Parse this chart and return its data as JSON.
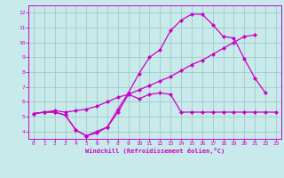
{
  "bg_color": "#c8eaea",
  "grid_color": "#a0cccc",
  "line_color": "#cc00cc",
  "marker": "D",
  "markersize": 2.0,
  "linewidth": 0.9,
  "xlabel": "Windchill (Refroidissement éolien,°C)",
  "xlim": [
    -0.5,
    23.5
  ],
  "ylim": [
    3.5,
    12.5
  ],
  "xticks": [
    0,
    1,
    2,
    3,
    4,
    5,
    6,
    7,
    8,
    9,
    10,
    11,
    12,
    13,
    14,
    15,
    16,
    17,
    18,
    19,
    20,
    21,
    22,
    23
  ],
  "yticks": [
    4,
    5,
    6,
    7,
    8,
    9,
    10,
    11,
    12
  ],
  "curve1_x": [
    0,
    1,
    2,
    3,
    4,
    5,
    6,
    7,
    8,
    9,
    10,
    11,
    12,
    13,
    14,
    15,
    16,
    17,
    18,
    19,
    20,
    21,
    22,
    23
  ],
  "curve1_y": [
    5.2,
    5.3,
    5.3,
    5.1,
    4.1,
    3.7,
    3.9,
    4.3,
    5.3,
    6.5,
    6.2,
    6.5,
    6.6,
    6.5,
    5.3,
    5.3,
    5.3,
    5.3,
    5.3,
    5.3,
    5.3,
    5.3,
    5.3,
    5.3
  ],
  "curve2_x": [
    0,
    1,
    2,
    3,
    4,
    5,
    6,
    7,
    8,
    9,
    10,
    11,
    12,
    13,
    14,
    15,
    16,
    17,
    18,
    19,
    20,
    21,
    22,
    23
  ],
  "curve2_y": [
    5.2,
    5.3,
    5.3,
    5.1,
    4.1,
    3.7,
    4.0,
    4.3,
    5.5,
    6.6,
    7.9,
    9.0,
    9.5,
    10.8,
    11.5,
    11.9,
    11.9,
    11.2,
    10.4,
    10.3,
    8.9,
    7.6,
    6.6,
    null
  ],
  "curve3_x": [
    0,
    1,
    2,
    3,
    4,
    5,
    6,
    7,
    8,
    9,
    10,
    11,
    12,
    13,
    14,
    15,
    16,
    17,
    18,
    19,
    20,
    21,
    22,
    23
  ],
  "curve3_y": [
    5.2,
    5.3,
    5.4,
    5.3,
    5.4,
    5.5,
    5.7,
    6.0,
    6.3,
    6.5,
    6.8,
    7.1,
    7.4,
    7.7,
    8.1,
    8.5,
    8.8,
    9.2,
    9.6,
    10.0,
    10.4,
    10.5,
    null,
    null
  ]
}
